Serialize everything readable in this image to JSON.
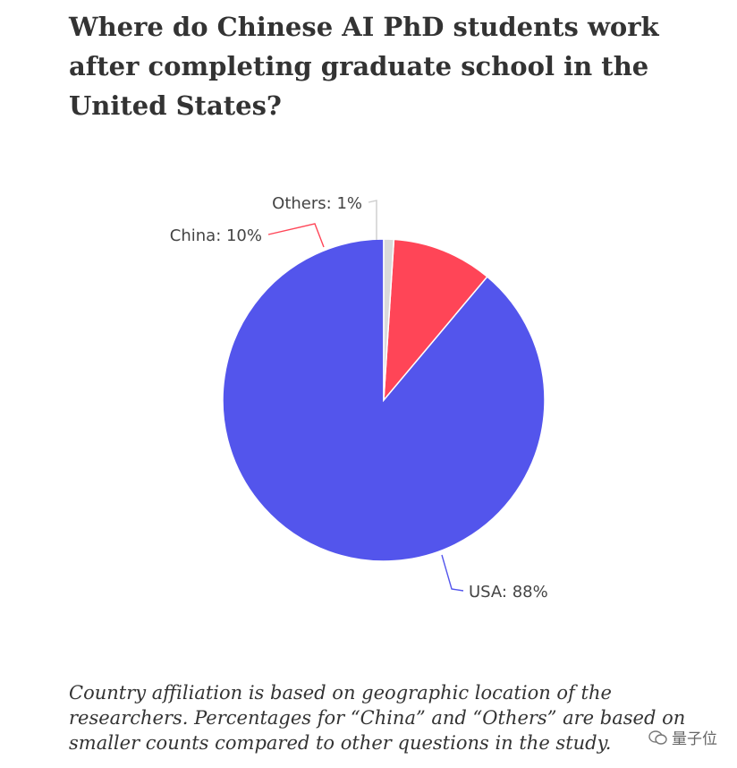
{
  "title": "Where do Chinese AI PhD students work after completing graduate school in the United States?",
  "caption": "Country affiliation is based on geographic location of the researchers. Percentages for “China” and “Others” are based on smaller counts compared to other questions in the study.",
  "watermark": "量子位",
  "colors": {
    "usa": "#5355EC",
    "china": "#FF4557",
    "others": "#DADADA"
  },
  "chart_data": {
    "type": "pie",
    "title": "Where do Chinese AI PhD students work after completing graduate school in the United States?",
    "slices": [
      {
        "name": "USA",
        "value": 88,
        "label": "USA: 88%"
      },
      {
        "name": "China",
        "value": 10,
        "label": "China: 10%"
      },
      {
        "name": "Others",
        "value": 1,
        "label": "Others: 1%"
      }
    ],
    "start": "12 o'clock, counter-clockwise order: USA then China then Others"
  }
}
